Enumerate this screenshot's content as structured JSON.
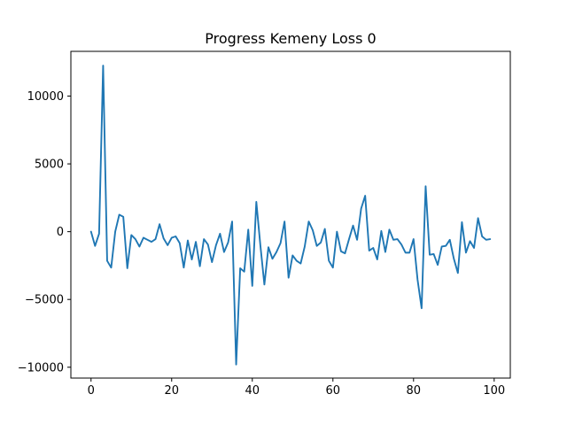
{
  "chart_data": {
    "type": "line",
    "title": "Progress Kemeny Loss 0",
    "xlabel": "",
    "ylabel": "",
    "xlim": [
      -5,
      104
    ],
    "ylim": [
      -10800,
      13300
    ],
    "xticks": [
      0,
      20,
      40,
      60,
      80,
      100
    ],
    "yticks": [
      -10000,
      -5000,
      0,
      5000,
      10000
    ],
    "grid": false,
    "series": [
      {
        "color": "#1f77b4",
        "x": [
          0,
          1,
          2,
          3,
          4,
          5,
          6,
          7,
          8,
          9,
          10,
          11,
          12,
          13,
          14,
          15,
          16,
          17,
          18,
          19,
          20,
          21,
          22,
          23,
          24,
          25,
          26,
          27,
          28,
          29,
          30,
          31,
          32,
          33,
          34,
          35,
          36,
          37,
          38,
          39,
          40,
          41,
          42,
          43,
          44,
          45,
          46,
          47,
          48,
          49,
          50,
          51,
          52,
          53,
          54,
          55,
          56,
          57,
          58,
          59,
          60,
          61,
          62,
          63,
          64,
          65,
          66,
          67,
          68,
          69,
          70,
          71,
          72,
          73,
          74,
          75,
          76,
          77,
          78,
          79,
          80,
          81,
          82,
          83,
          84,
          85,
          86,
          87,
          88,
          89,
          90,
          91,
          92,
          93,
          94,
          95,
          96,
          97,
          98,
          99
        ],
        "values": [
          0,
          -1050,
          -150,
          12250,
          -2150,
          -2650,
          0,
          1250,
          1100,
          -2700,
          -250,
          -550,
          -1100,
          -450,
          -600,
          -750,
          -550,
          550,
          -500,
          -1000,
          -450,
          -350,
          -850,
          -2650,
          -650,
          -2050,
          -750,
          -2550,
          -550,
          -950,
          -2250,
          -1000,
          -150,
          -1500,
          -800,
          750,
          -9800,
          -2700,
          -2950,
          150,
          -4000,
          2200,
          -1000,
          -3900,
          -1150,
          -2000,
          -1500,
          -850,
          750,
          -3400,
          -1750,
          -2150,
          -2350,
          -1100,
          750,
          100,
          -1050,
          -800,
          200,
          -2150,
          -2650,
          0,
          -1450,
          -1600,
          -550,
          450,
          -600,
          1700,
          2650,
          -1400,
          -1200,
          -2050,
          50,
          -1500,
          150,
          -600,
          -550,
          -950,
          -1550,
          -1550,
          -550,
          -3550,
          -5650,
          3350,
          -1700,
          -1650,
          -2450,
          -1100,
          -1050,
          -600,
          -2000,
          -3050,
          700,
          -1550,
          -700,
          -1200,
          1000,
          -350,
          -600,
          -550
        ]
      }
    ]
  }
}
